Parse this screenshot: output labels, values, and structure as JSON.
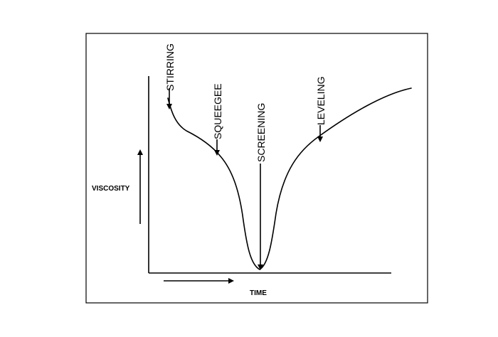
{
  "diagram": {
    "y_axis_label": "VISCOSITY",
    "x_axis_label": "TIME",
    "stages": [
      {
        "label": "STIRRING"
      },
      {
        "label": "SQUEEGEE"
      },
      {
        "label": "SCREENING"
      },
      {
        "label": "LEVELING"
      }
    ]
  }
}
